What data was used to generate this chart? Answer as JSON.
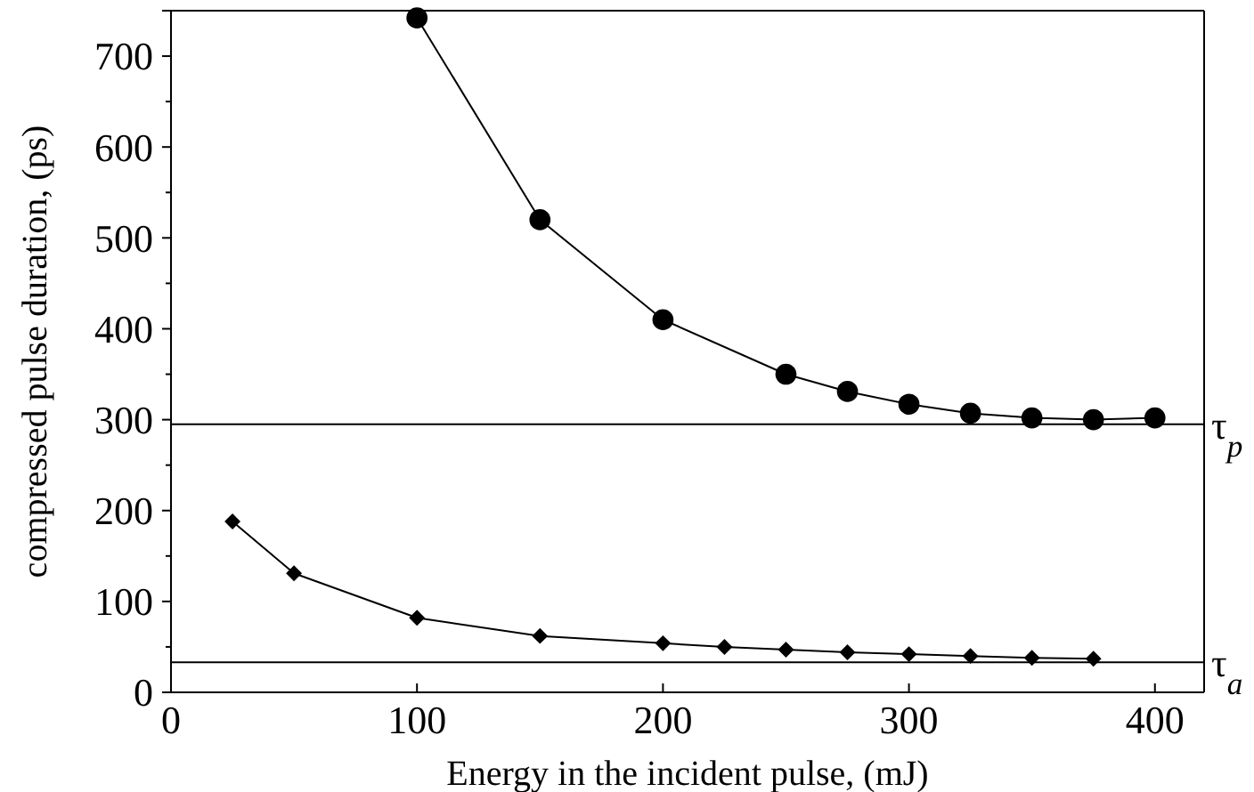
{
  "chart_data": {
    "type": "line",
    "xlabel": "Energy in the incident pulse, (mJ)",
    "ylabel": "compressed pulse duration, (ps)",
    "xlim": [
      0,
      420
    ],
    "xticks": [
      0,
      100,
      200,
      300,
      400
    ],
    "ylim": [
      0,
      750
    ],
    "yticks": [
      0,
      {
        "value": 50,
        "label": null
      },
      100,
      {
        "value": 150,
        "label": null
      },
      200,
      {
        "value": 250,
        "label": null
      },
      300,
      {
        "value": 350,
        "label": null
      },
      400,
      {
        "value": 450,
        "label": null
      },
      500,
      {
        "value": 550,
        "label": null
      },
      600,
      {
        "value": 650,
        "label": null
      },
      700
    ],
    "grid": false,
    "line_style": "solid",
    "series": [
      {
        "color": "#000000",
        "marker": "circle",
        "x": [
          100,
          150,
          200,
          250,
          275,
          300,
          325,
          350,
          375,
          400
        ],
        "values": [
          742,
          520,
          410,
          350,
          331,
          317,
          307,
          302,
          300,
          302
        ]
      },
      {
        "color": "#000000",
        "marker": "diamond",
        "x": [
          25,
          50,
          100,
          150,
          200,
          225,
          250,
          275,
          300,
          325,
          350,
          375
        ],
        "values": [
          188,
          131,
          82,
          62,
          54,
          50,
          47,
          44,
          42,
          40,
          38,
          37
        ]
      }
    ],
    "ref_lines": [
      {
        "axis": "y",
        "value": 295,
        "label": "τ$_{p}$",
        "color": "#000000"
      },
      {
        "axis": "y",
        "value": 33,
        "label": "τ$_{a}$",
        "color": "#000000"
      }
    ]
  }
}
